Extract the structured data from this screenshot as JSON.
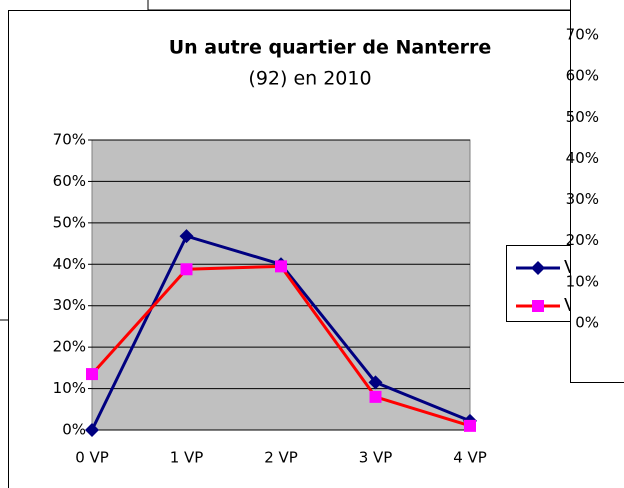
{
  "chart_data": [
    {
      "type": "line",
      "title": "Un autre quartier de Nanterre",
      "subtitle": "(92) en 2010",
      "categories": [
        "0 VP",
        "1 VP",
        "2 VP",
        "3 VP",
        "4 VP"
      ],
      "series": [
        {
          "name": "V",
          "color": "#000080",
          "marker": "diamond",
          "values": [
            0,
            46.8,
            40,
            11.5,
            2.2
          ]
        },
        {
          "name": "V",
          "color": "#ff0000",
          "marker_color": "#ff00ff",
          "marker": "square",
          "values": [
            13.5,
            38.8,
            39.5,
            8,
            1
          ]
        }
      ],
      "ylim": [
        0,
        70
      ],
      "yticks": [
        {
          "value": 0,
          "label": "0%"
        },
        {
          "value": 10,
          "label": "10%"
        },
        {
          "value": 20,
          "label": "20%"
        },
        {
          "value": 30,
          "label": "30%"
        },
        {
          "value": 40,
          "label": "40%"
        },
        {
          "value": 50,
          "label": "50%"
        },
        {
          "value": 60,
          "label": "60%"
        },
        {
          "value": 70,
          "label": "70%"
        }
      ],
      "grid": true,
      "plot_background": "#c0c0c0"
    },
    {
      "type": "line",
      "ylim": [
        0,
        70
      ],
      "yticks": [
        {
          "value": 0,
          "label": "0%"
        },
        {
          "value": 10,
          "label": "10%"
        },
        {
          "value": 20,
          "label": "20%"
        },
        {
          "value": 30,
          "label": "30%"
        },
        {
          "value": 40,
          "label": "40%"
        },
        {
          "value": 50,
          "label": "50%"
        },
        {
          "value": 60,
          "label": "60%"
        },
        {
          "value": 70,
          "label": "70%"
        }
      ]
    }
  ]
}
